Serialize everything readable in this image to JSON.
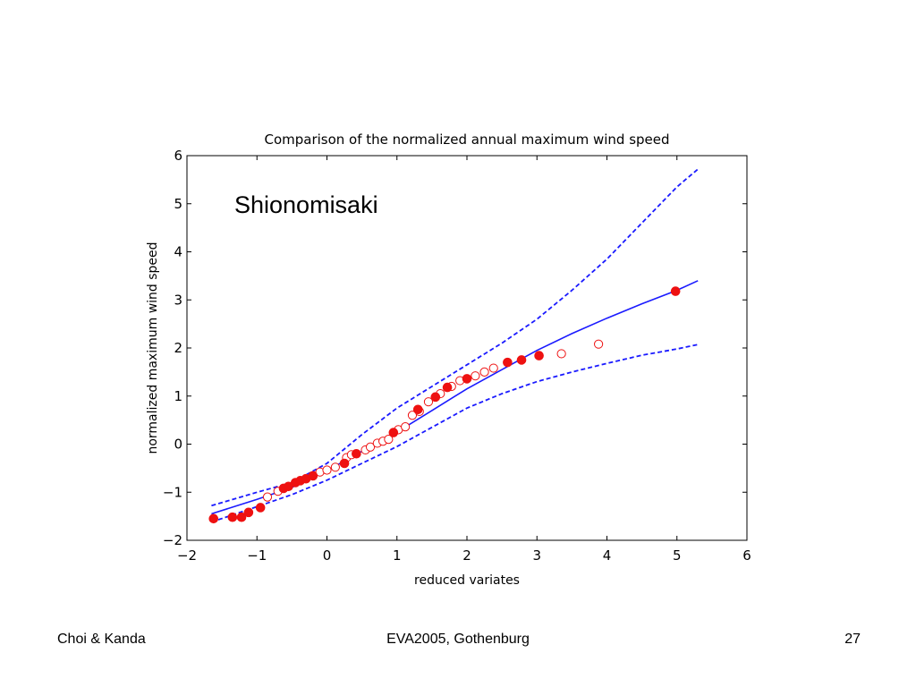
{
  "footer": {
    "left": "Choi & Kanda",
    "center": "EVA2005, Gothenburg",
    "right": "27"
  },
  "colors": {
    "curve": "#1a1aff",
    "points": "#ee1111",
    "axis": "#000000"
  },
  "chart_data": {
    "type": "scatter",
    "title": "Comparison of the normalized annual maximum wind speed",
    "annotation": "Shionomisaki",
    "xlabel": "reduced variates",
    "ylabel": "normalized maximum wind speed",
    "xlim": [
      -2,
      6
    ],
    "ylim": [
      -2,
      6
    ],
    "xticks": [
      -2,
      -1,
      0,
      1,
      2,
      3,
      4,
      5,
      6
    ],
    "yticks": [
      -2,
      -1,
      0,
      1,
      2,
      3,
      4,
      5,
      6
    ],
    "xtick_labels": [
      "−2",
      "−1",
      "0",
      "1",
      "2",
      "3",
      "4",
      "5",
      "6"
    ],
    "ytick_labels": [
      "−2",
      "−1",
      "0",
      "1",
      "2",
      "3",
      "4",
      "5",
      "6"
    ],
    "grid": false,
    "lines": [
      {
        "style": "solid",
        "x": [
          -1.65,
          -1.0,
          -0.5,
          0.0,
          0.5,
          1.0,
          1.5,
          2.0,
          2.5,
          3.0,
          3.5,
          4.0,
          4.5,
          5.0,
          5.3
        ],
        "y": [
          -1.45,
          -1.15,
          -0.9,
          -0.55,
          -0.15,
          0.25,
          0.7,
          1.15,
          1.55,
          1.95,
          2.3,
          2.62,
          2.92,
          3.2,
          3.4
        ]
      },
      {
        "style": "dashed",
        "x": [
          -1.65,
          -1.0,
          -0.5,
          0.0,
          0.5,
          1.0,
          1.5,
          2.0,
          2.5,
          3.0,
          3.5,
          4.0,
          4.5,
          5.0,
          5.3
        ],
        "y": [
          -1.28,
          -1.0,
          -0.8,
          -0.4,
          0.2,
          0.75,
          1.2,
          1.65,
          2.1,
          2.6,
          3.2,
          3.85,
          4.6,
          5.35,
          5.72
        ]
      },
      {
        "style": "dashed",
        "x": [
          -1.65,
          -1.0,
          -0.5,
          0.0,
          0.5,
          1.0,
          1.5,
          2.0,
          2.5,
          3.0,
          3.5,
          4.0,
          4.5,
          5.0,
          5.3
        ],
        "y": [
          -1.62,
          -1.3,
          -1.05,
          -0.75,
          -0.4,
          -0.05,
          0.35,
          0.75,
          1.05,
          1.3,
          1.5,
          1.68,
          1.85,
          1.98,
          2.07
        ]
      }
    ],
    "series_filled": [
      {
        "x": -1.62,
        "y": -1.55
      },
      {
        "x": -1.35,
        "y": -1.52
      },
      {
        "x": -1.22,
        "y": -1.52
      },
      {
        "x": -1.12,
        "y": -1.42
      },
      {
        "x": -0.95,
        "y": -1.32
      },
      {
        "x": -0.62,
        "y": -0.92
      },
      {
        "x": -0.55,
        "y": -0.88
      },
      {
        "x": -0.45,
        "y": -0.8
      },
      {
        "x": -0.38,
        "y": -0.76
      },
      {
        "x": -0.3,
        "y": -0.72
      },
      {
        "x": -0.2,
        "y": -0.66
      },
      {
        "x": 0.25,
        "y": -0.4
      },
      {
        "x": 0.42,
        "y": -0.2
      },
      {
        "x": 0.95,
        "y": 0.24
      },
      {
        "x": 1.3,
        "y": 0.72
      },
      {
        "x": 1.55,
        "y": 0.98
      },
      {
        "x": 1.72,
        "y": 1.18
      },
      {
        "x": 2.0,
        "y": 1.36
      },
      {
        "x": 2.58,
        "y": 1.7
      },
      {
        "x": 2.78,
        "y": 1.75
      },
      {
        "x": 3.03,
        "y": 1.84
      },
      {
        "x": 4.98,
        "y": 3.18
      }
    ],
    "series_open": [
      {
        "x": -0.85,
        "y": -1.1
      },
      {
        "x": -0.7,
        "y": -0.98
      },
      {
        "x": -0.1,
        "y": -0.58
      },
      {
        "x": 0.0,
        "y": -0.54
      },
      {
        "x": 0.12,
        "y": -0.48
      },
      {
        "x": 0.28,
        "y": -0.28
      },
      {
        "x": 0.35,
        "y": -0.22
      },
      {
        "x": 0.55,
        "y": -0.12
      },
      {
        "x": 0.62,
        "y": -0.06
      },
      {
        "x": 0.72,
        "y": 0.02
      },
      {
        "x": 0.8,
        "y": 0.06
      },
      {
        "x": 0.88,
        "y": 0.1
      },
      {
        "x": 1.02,
        "y": 0.3
      },
      {
        "x": 1.12,
        "y": 0.36
      },
      {
        "x": 1.22,
        "y": 0.6
      },
      {
        "x": 1.32,
        "y": 0.68
      },
      {
        "x": 1.45,
        "y": 0.88
      },
      {
        "x": 1.62,
        "y": 1.05
      },
      {
        "x": 1.78,
        "y": 1.2
      },
      {
        "x": 1.9,
        "y": 1.32
      },
      {
        "x": 2.12,
        "y": 1.42
      },
      {
        "x": 2.25,
        "y": 1.5
      },
      {
        "x": 2.38,
        "y": 1.58
      },
      {
        "x": 3.35,
        "y": 1.88
      },
      {
        "x": 3.88,
        "y": 2.08
      }
    ]
  }
}
